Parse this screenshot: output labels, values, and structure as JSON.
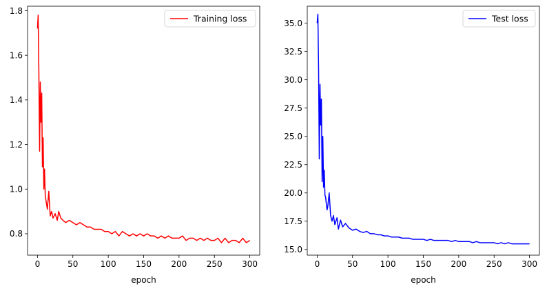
{
  "chart_data": [
    {
      "type": "line",
      "xlabel": "epoch",
      "ylabel": "",
      "xlim": [
        -14,
        314
      ],
      "ylim": [
        0.704,
        1.82
      ],
      "xticks": [
        0,
        50,
        100,
        150,
        200,
        250,
        300
      ],
      "yticks": [
        0.8,
        1.0,
        1.2,
        1.4,
        1.6,
        1.8
      ],
      "ytick_format": 1,
      "legend_position": "top-right",
      "grid": false,
      "series": [
        {
          "name": "Training loss",
          "color": "#ff0000",
          "x": [
            0,
            1,
            2,
            3,
            4,
            5,
            6,
            7,
            8,
            9,
            10,
            11,
            12,
            13,
            14,
            16,
            18,
            20,
            22,
            25,
            28,
            30,
            33,
            36,
            40,
            45,
            50,
            55,
            60,
            65,
            70,
            75,
            80,
            85,
            90,
            95,
            100,
            105,
            110,
            115,
            120,
            125,
            130,
            135,
            140,
            145,
            150,
            155,
            160,
            165,
            170,
            175,
            180,
            185,
            190,
            195,
            200,
            205,
            210,
            215,
            220,
            225,
            230,
            235,
            240,
            245,
            250,
            255,
            260,
            265,
            270,
            275,
            280,
            285,
            290,
            295,
            300
          ],
          "values": [
            1.72,
            1.78,
            1.52,
            1.17,
            1.48,
            1.3,
            1.43,
            1.1,
            1.23,
            1.0,
            1.09,
            0.97,
            0.95,
            0.93,
            0.91,
            0.99,
            0.88,
            0.9,
            0.87,
            0.89,
            0.86,
            0.9,
            0.87,
            0.86,
            0.85,
            0.86,
            0.85,
            0.84,
            0.85,
            0.84,
            0.83,
            0.83,
            0.82,
            0.82,
            0.82,
            0.81,
            0.81,
            0.8,
            0.81,
            0.79,
            0.81,
            0.8,
            0.79,
            0.8,
            0.79,
            0.8,
            0.79,
            0.8,
            0.79,
            0.79,
            0.78,
            0.79,
            0.78,
            0.79,
            0.78,
            0.78,
            0.78,
            0.79,
            0.77,
            0.78,
            0.78,
            0.77,
            0.78,
            0.77,
            0.78,
            0.77,
            0.77,
            0.78,
            0.76,
            0.78,
            0.76,
            0.77,
            0.77,
            0.76,
            0.78,
            0.76,
            0.77
          ]
        }
      ]
    },
    {
      "type": "line",
      "xlabel": "epoch",
      "ylabel": "",
      "xlim": [
        -14,
        314
      ],
      "ylim": [
        14.5,
        36.5
      ],
      "xticks": [
        0,
        50,
        100,
        150,
        200,
        250,
        300
      ],
      "yticks": [
        15.0,
        17.5,
        20.0,
        22.5,
        25.0,
        27.5,
        30.0,
        32.5,
        35.0
      ],
      "ytick_format": 1,
      "legend_position": "top-right",
      "grid": false,
      "series": [
        {
          "name": "Test loss",
          "color": "#0000ff",
          "x": [
            0,
            1,
            2,
            3,
            4,
            5,
            6,
            7,
            8,
            9,
            10,
            11,
            12,
            13,
            14,
            15,
            17,
            19,
            21,
            23,
            25,
            28,
            30,
            33,
            36,
            40,
            45,
            50,
            55,
            60,
            65,
            70,
            75,
            80,
            85,
            90,
            95,
            100,
            105,
            110,
            115,
            120,
            125,
            130,
            135,
            140,
            145,
            150,
            155,
            160,
            165,
            170,
            175,
            180,
            185,
            190,
            195,
            200,
            205,
            210,
            215,
            220,
            225,
            230,
            235,
            240,
            245,
            250,
            255,
            260,
            265,
            270,
            275,
            280,
            285,
            290,
            295,
            300
          ],
          "values": [
            35.0,
            35.8,
            31.0,
            23.0,
            29.6,
            26.0,
            28.3,
            21.0,
            25.0,
            20.5,
            22.0,
            19.8,
            19.6,
            19.0,
            18.5,
            18.8,
            20.0,
            18.0,
            17.5,
            18.0,
            17.2,
            17.8,
            16.8,
            17.6,
            17.0,
            17.3,
            16.9,
            16.7,
            16.8,
            16.6,
            16.5,
            16.6,
            16.4,
            16.4,
            16.3,
            16.3,
            16.2,
            16.2,
            16.1,
            16.1,
            16.1,
            16.0,
            16.0,
            16.0,
            15.9,
            15.9,
            15.9,
            15.9,
            15.8,
            15.9,
            15.8,
            15.8,
            15.8,
            15.8,
            15.8,
            15.7,
            15.8,
            15.7,
            15.7,
            15.7,
            15.7,
            15.6,
            15.7,
            15.6,
            15.6,
            15.6,
            15.6,
            15.6,
            15.5,
            15.6,
            15.5,
            15.6,
            15.5,
            15.5,
            15.5,
            15.5,
            15.5,
            15.5
          ]
        }
      ]
    }
  ]
}
